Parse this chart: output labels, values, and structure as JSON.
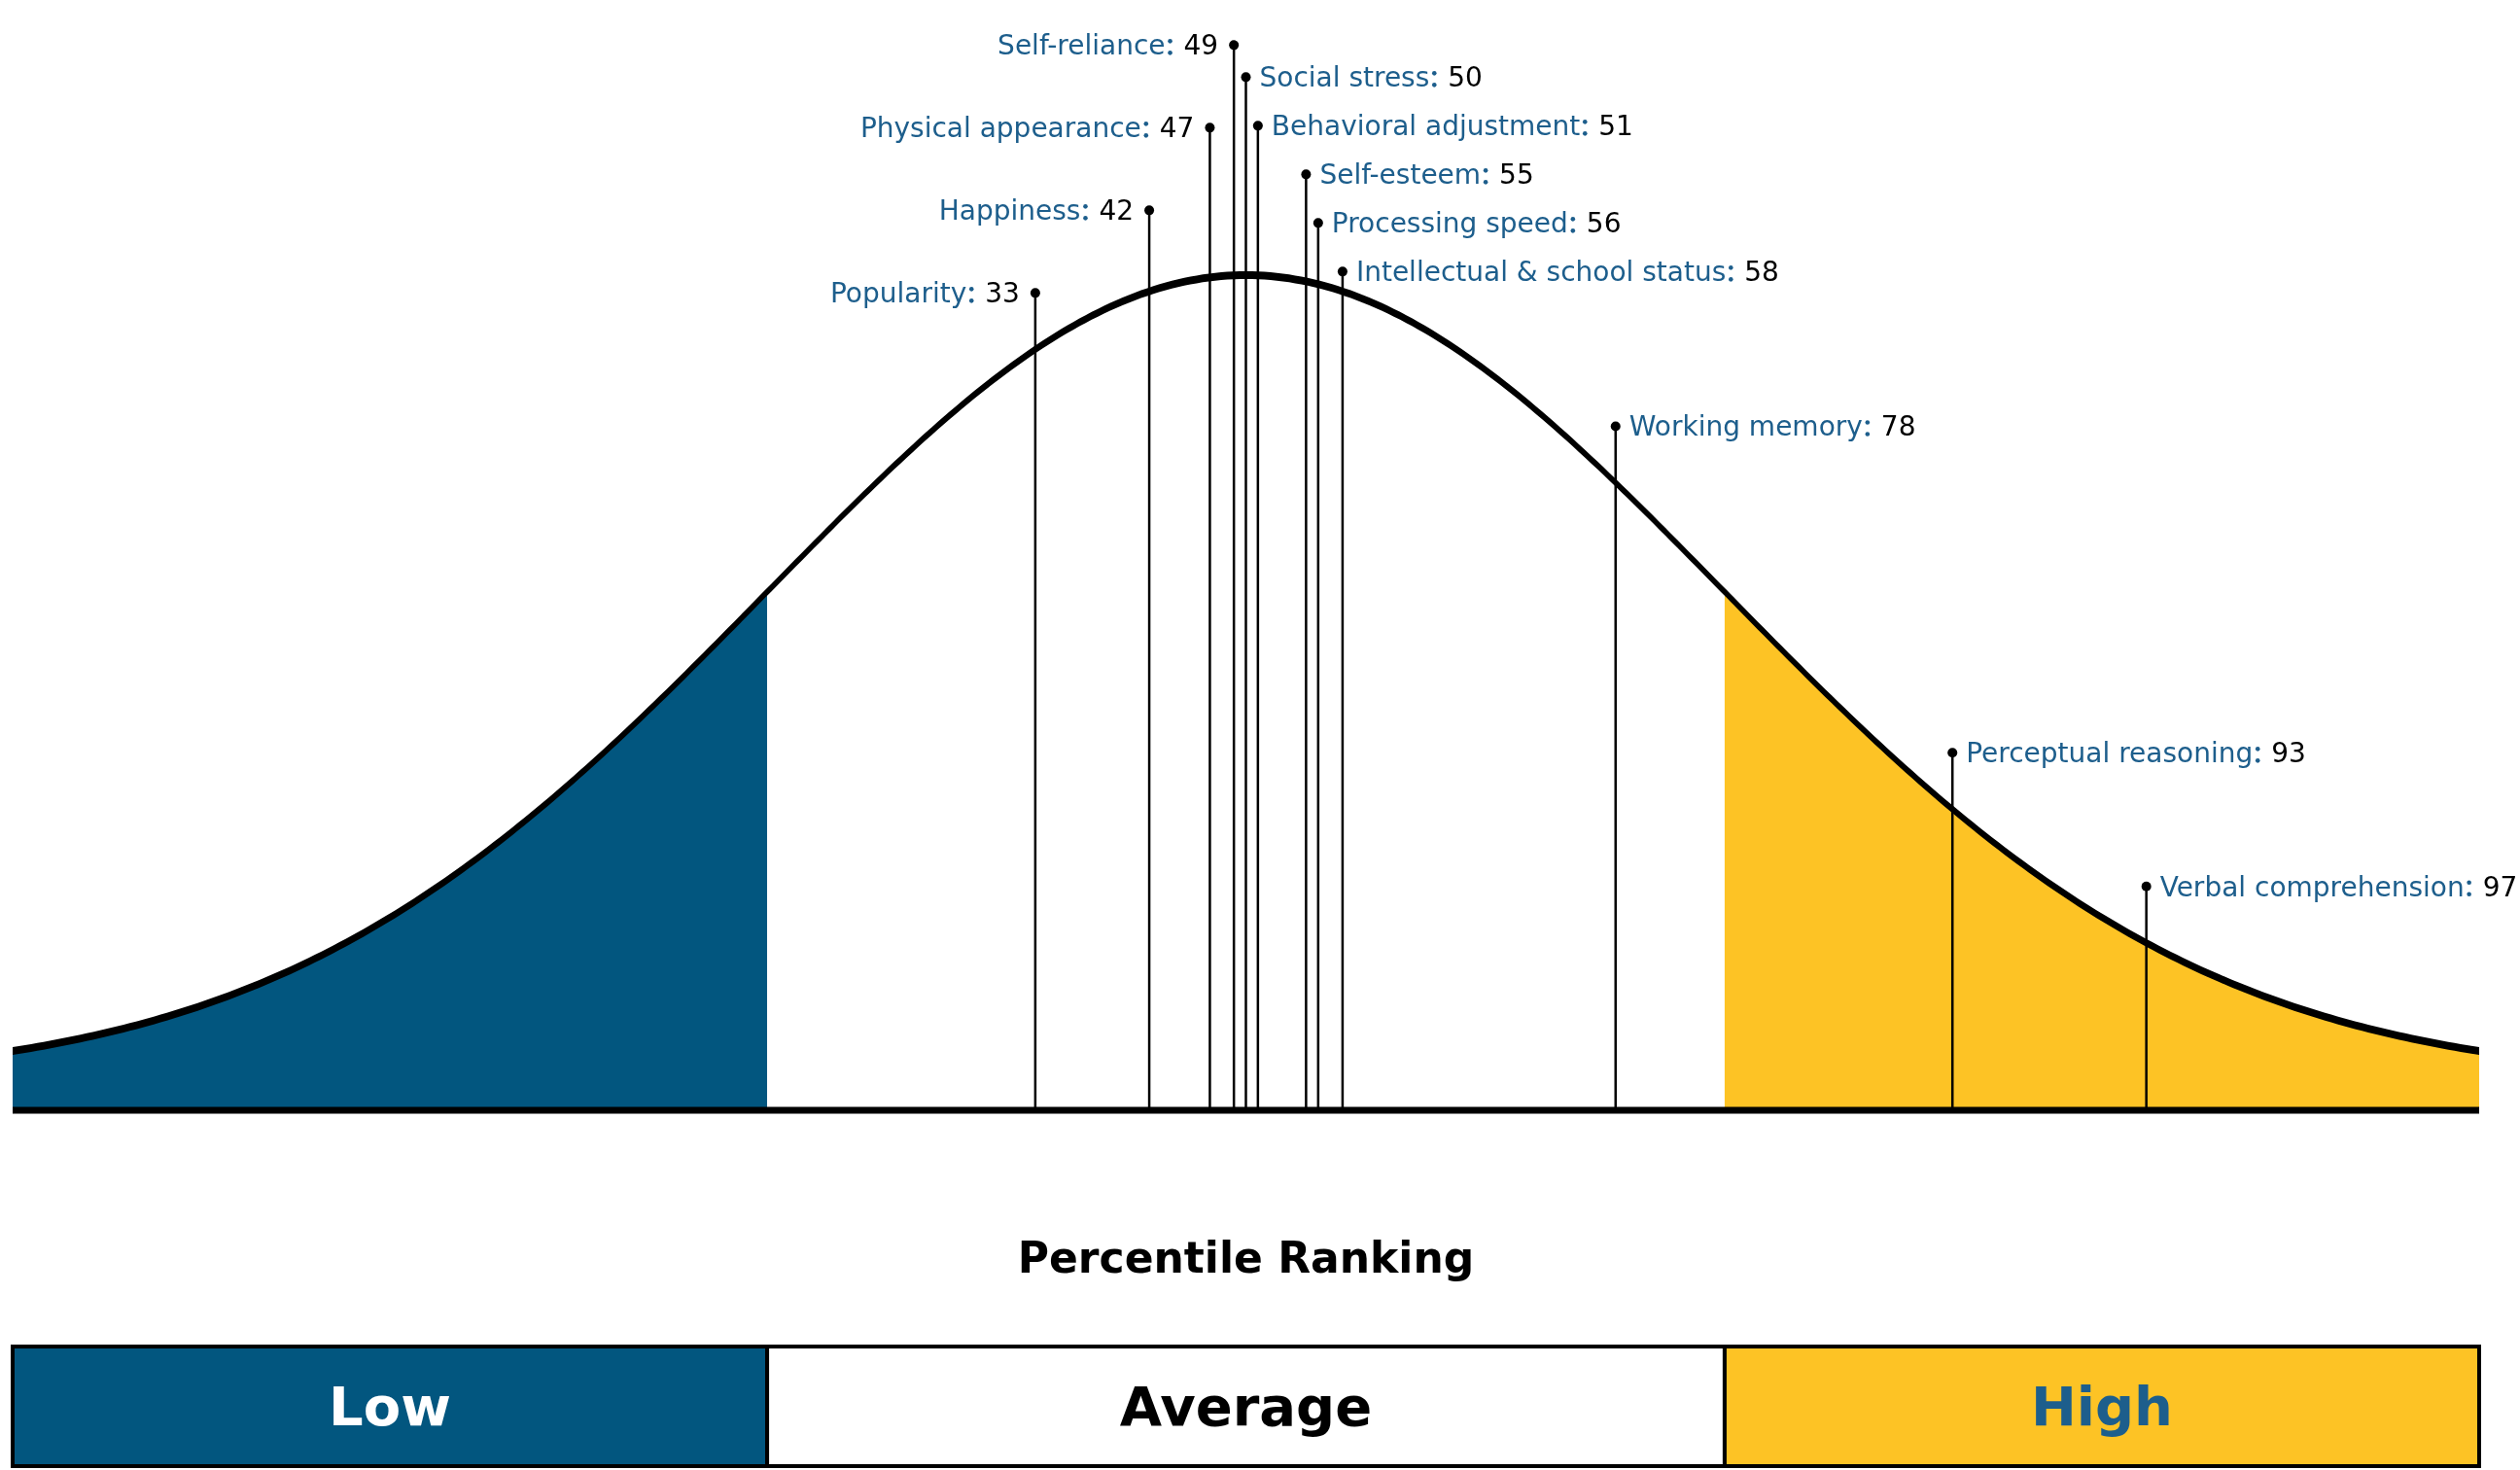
{
  "chart_data": {
    "type": "other",
    "xlabel": "Percentile Ranking",
    "categories": [
      "Popularity",
      "Happiness",
      "Physical appearance",
      "Self-reliance",
      "Social stress",
      "Behavioral adjustment",
      "Self-esteem",
      "Processing speed",
      "Intellectual & school status",
      "Working memory",
      "Perceptual reasoning",
      "Verbal comprehension"
    ],
    "values": [
      33,
      42,
      47,
      49,
      50,
      51,
      55,
      56,
      58,
      78,
      93,
      97
    ],
    "data_labels": true,
    "annotations": [
      "Low",
      "Average",
      "High"
    ]
  }
}
